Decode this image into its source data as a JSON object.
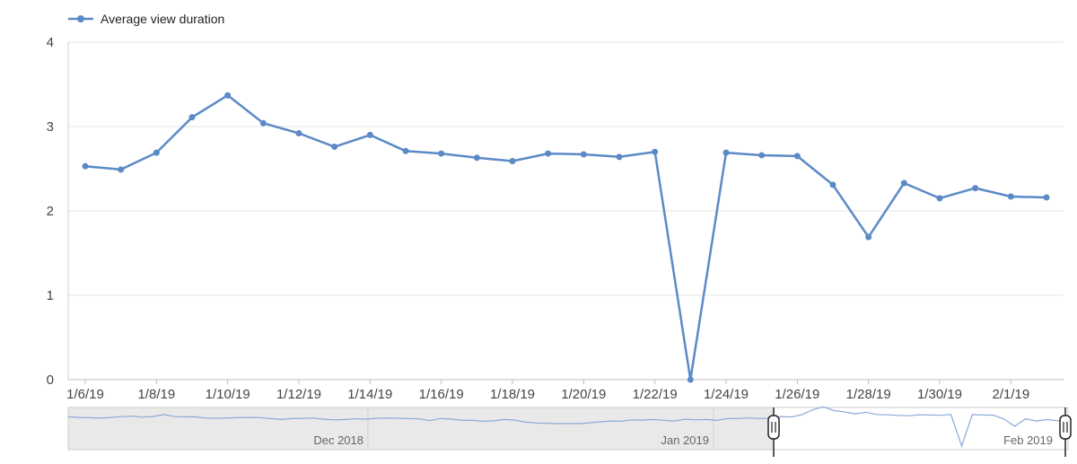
{
  "chart_data": {
    "type": "line",
    "series": [
      {
        "name": "Average view duration",
        "color": "#5b8ac6",
        "x": [
          "1/6/19",
          "1/7/19",
          "1/8/19",
          "1/9/19",
          "1/10/19",
          "1/11/19",
          "1/12/19",
          "1/13/19",
          "1/14/19",
          "1/15/19",
          "1/16/19",
          "1/17/19",
          "1/18/19",
          "1/19/19",
          "1/20/19",
          "1/21/19",
          "1/22/19",
          "1/23/19",
          "1/24/19",
          "1/25/19",
          "1/26/19",
          "1/27/19",
          "1/28/19",
          "1/29/19",
          "1/30/19",
          "1/31/19",
          "2/1/19",
          "2/2/19"
        ],
        "values": [
          2.53,
          2.49,
          2.69,
          3.11,
          3.37,
          3.04,
          2.92,
          2.76,
          2.9,
          2.71,
          2.68,
          2.63,
          2.59,
          2.68,
          2.67,
          2.64,
          2.7,
          0.0,
          2.69,
          2.66,
          2.65,
          2.31,
          1.69,
          2.33,
          2.15,
          2.27,
          2.17,
          2.16
        ]
      }
    ],
    "x_tick_labels": [
      "1/6/19",
      "1/8/19",
      "1/10/19",
      "1/12/19",
      "1/14/19",
      "1/16/19",
      "1/18/19",
      "1/20/19",
      "1/22/19",
      "1/24/19",
      "1/26/19",
      "1/28/19",
      "1/30/19",
      "2/1/19"
    ],
    "y_ticks": [
      0,
      1,
      2,
      3,
      4
    ],
    "ylim": [
      0,
      4
    ],
    "grid": true,
    "legend": {
      "position": "top-left",
      "label": "Average view duration"
    },
    "navigator": {
      "labels": [
        "Dec 2018",
        "Jan 2019",
        "Feb 2019"
      ],
      "preview_values": [
        2.5,
        2.45,
        2.43,
        2.4,
        2.45,
        2.52,
        2.56,
        2.48,
        2.53,
        2.7,
        2.52,
        2.51,
        2.5,
        2.4,
        2.38,
        2.41,
        2.43,
        2.45,
        2.44,
        2.35,
        2.28,
        2.35,
        2.38,
        2.4,
        2.3,
        2.25,
        2.28,
        2.33,
        2.31,
        2.38,
        2.4,
        2.38,
        2.35,
        2.33,
        2.18,
        2.36,
        2.31,
        2.22,
        2.2,
        2.12,
        2.16,
        2.28,
        2.22,
        2.05,
        1.98,
        1.95,
        1.92,
        1.94,
        1.92,
        1.99,
        2.08,
        2.15,
        2.13,
        2.25,
        2.22,
        2.28,
        2.21,
        2.15,
        2.3,
        2.25,
        2.28,
        2.2,
        2.35,
        2.36,
        2.41,
        2.36,
        2.4
      ],
      "window_start_index": 67
    }
  }
}
